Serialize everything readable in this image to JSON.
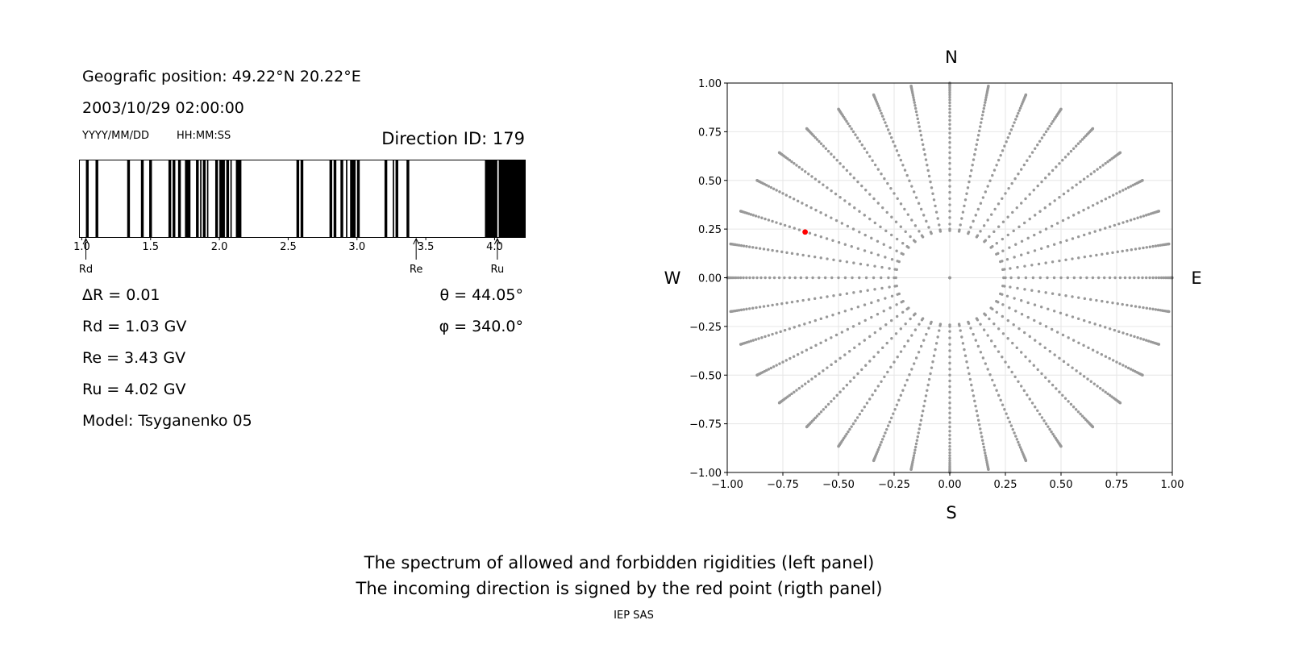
{
  "left_panel": {
    "geo_position": "Geografic position: 49.22°N 20.22°E",
    "datetime": "2003/10/29 02:00:00",
    "date_format": "YYYY/MM/DD",
    "time_format": "HH:MM:SS",
    "direction_id": "Direction ID: 179",
    "delta_r": "ΔR = 0.01",
    "theta": "θ = 44.05°",
    "phi": "φ = 340.0°",
    "rd": "Rd = 1.03 GV",
    "re": "Re = 3.43 GV",
    "ru": "Ru = 4.02 GV",
    "model": "Model: Tsyganenko 05"
  },
  "right_panel": {
    "compass": {
      "n": "N",
      "s": "S",
      "w": "W",
      "e": "E"
    }
  },
  "caption": {
    "line1": "The spectrum of allowed and forbidden rigidities (left panel)",
    "line2": "The incoming direction is signed by the red point (rigth panel)",
    "credit": "IEP SAS"
  },
  "chart_data": [
    {
      "type": "bar",
      "description_key": "rigidity spectrum",
      "xlim": [
        0.98,
        4.22
      ],
      "xticks": [
        "1.0",
        "1.5",
        "2.0",
        "2.5",
        "3.0",
        "3.5",
        "4.0"
      ],
      "xtick_values": [
        1.0,
        1.5,
        2.0,
        2.5,
        3.0,
        3.5,
        4.0
      ],
      "forbidden_bands": [
        [
          1.03,
          1.05
        ],
        [
          1.1,
          1.12
        ],
        [
          1.33,
          1.35
        ],
        [
          1.43,
          1.45
        ],
        [
          1.49,
          1.51
        ],
        [
          1.63,
          1.65
        ],
        [
          1.66,
          1.68
        ],
        [
          1.7,
          1.72
        ],
        [
          1.75,
          1.79
        ],
        [
          1.83,
          1.85
        ],
        [
          1.86,
          1.87
        ],
        [
          1.88,
          1.9
        ],
        [
          1.91,
          1.92
        ],
        [
          1.97,
          1.99
        ],
        [
          2.0,
          2.04
        ],
        [
          2.05,
          2.07
        ],
        [
          2.08,
          2.09
        ],
        [
          2.12,
          2.16
        ],
        [
          2.56,
          2.58
        ],
        [
          2.59,
          2.61
        ],
        [
          2.8,
          2.82
        ],
        [
          2.83,
          2.85
        ],
        [
          2.88,
          2.9
        ],
        [
          2.92,
          2.93
        ],
        [
          2.95,
          2.99
        ],
        [
          3.0,
          3.02
        ],
        [
          3.2,
          3.22
        ],
        [
          3.26,
          3.27
        ],
        [
          3.28,
          3.3
        ],
        [
          3.36,
          3.38
        ],
        [
          3.93,
          4.02
        ],
        [
          4.03,
          4.22
        ]
      ],
      "markers": [
        {
          "label": "Rd",
          "value": 1.03
        },
        {
          "label": "Re",
          "value": 3.43
        },
        {
          "label": "Ru",
          "value": 4.02
        }
      ],
      "bar_color": "#000000"
    },
    {
      "type": "scatter",
      "description_key": "asymptotic directions",
      "xlim": [
        -1.0,
        1.0
      ],
      "ylim": [
        -1.0,
        1.0
      ],
      "xticks": [
        "−1.00",
        "−0.75",
        "−0.50",
        "−0.25",
        "0.00",
        "0.25",
        "0.50",
        "0.75",
        "1.00"
      ],
      "yticks": [
        "−1.00",
        "−0.75",
        "−0.50",
        "−0.25",
        "0.00",
        "0.25",
        "0.50",
        "0.75",
        "1.00"
      ],
      "tick_values": [
        -1.0,
        -0.75,
        -0.5,
        -0.25,
        0.0,
        0.25,
        0.5,
        0.75,
        1.0
      ],
      "grid": true,
      "grid_series": {
        "spoke_angles_deg_step": 10,
        "theta_deg_range": [
          0,
          90
        ],
        "theta_deg_step": 2,
        "points_on_unit_disk": true,
        "color": "#999999"
      },
      "highlight_point": {
        "x": -0.65,
        "y": 0.235,
        "color": "#ff0000"
      }
    }
  ]
}
